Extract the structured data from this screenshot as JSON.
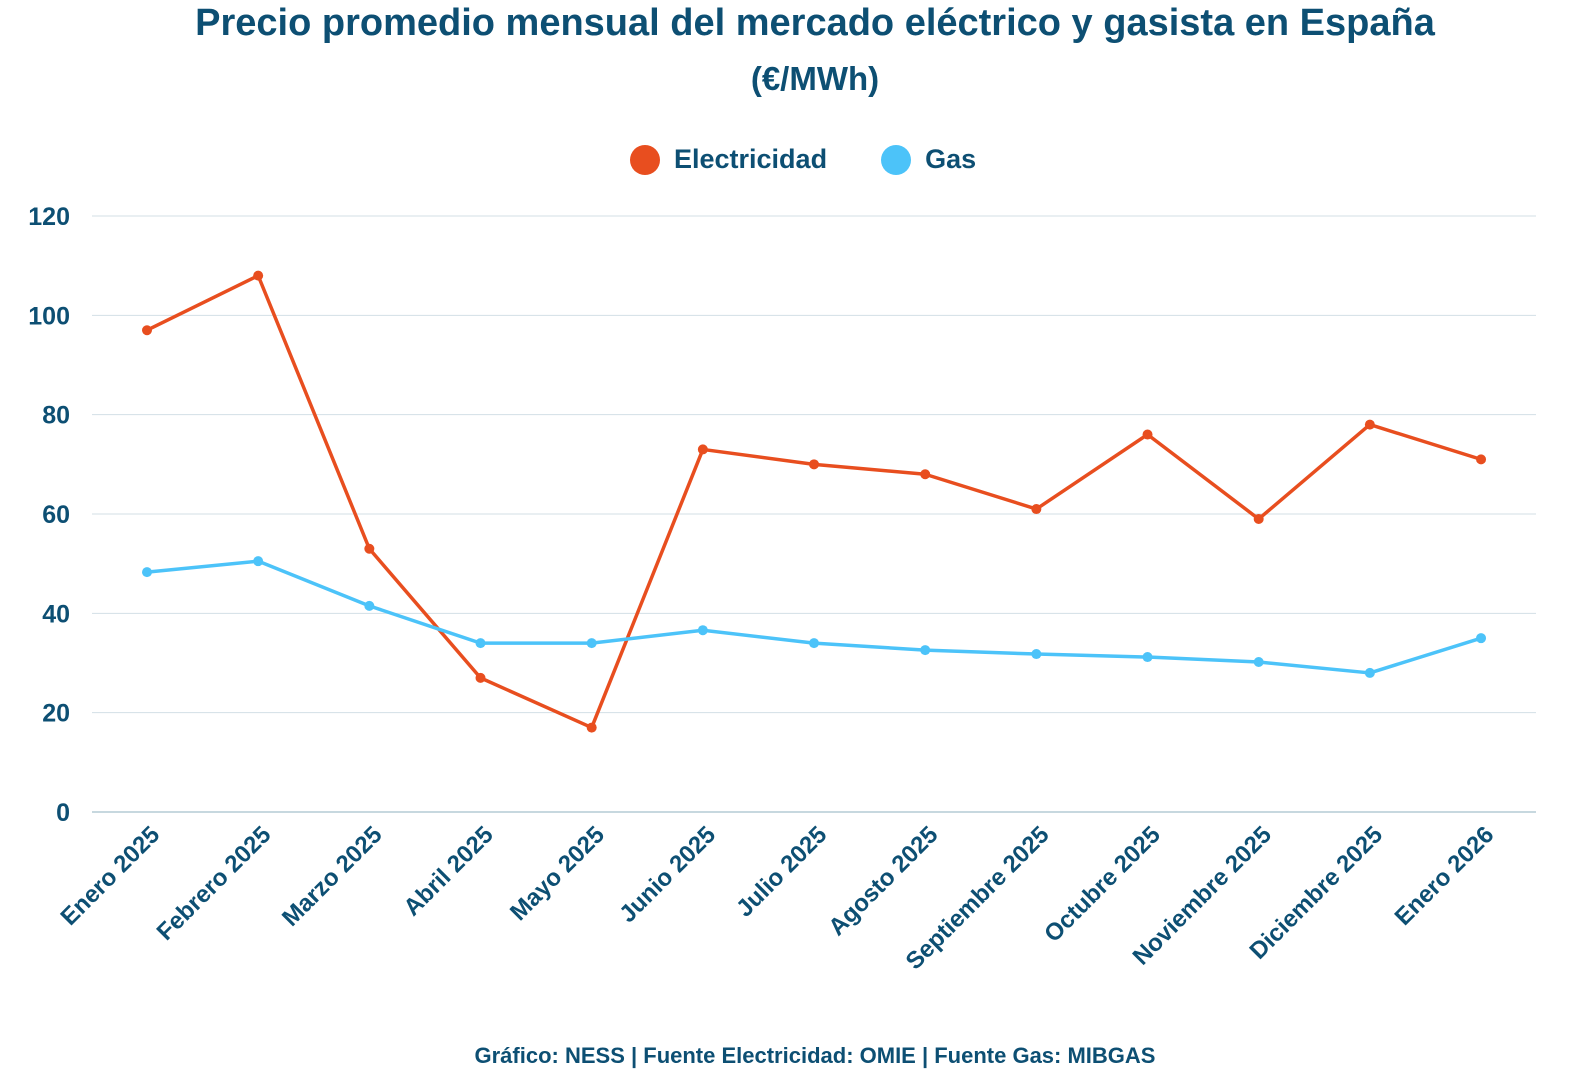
{
  "chart_data": {
    "type": "line",
    "title": "Precio promedio mensual del mercado eléctrico y gasista en España",
    "subtitle": "(€/MWh)",
    "categories": [
      "Enero 2025",
      "Febrero 2025",
      "Marzo 2025",
      "Abril 2025",
      "Mayo 2025",
      "Junio 2025",
      "Julio 2025",
      "Agosto 2025",
      "Septiembre 2025",
      "Octubre 2025",
      "Noviembre 2025",
      "Diciembre 2025",
      "Enero 2026"
    ],
    "series": [
      {
        "name": "Electricidad",
        "color": "#E84E1F",
        "values": [
          97,
          108,
          53,
          27,
          17,
          73,
          70,
          68,
          61,
          76,
          59,
          78,
          71
        ]
      },
      {
        "name": "Gas",
        "color": "#4CC3F9",
        "values": [
          48.3,
          50.5,
          41.5,
          34.0,
          34.0,
          36.6,
          34.0,
          32.6,
          31.8,
          31.2,
          30.2,
          28.0,
          35.0
        ]
      }
    ],
    "ylim": [
      0,
      120
    ],
    "yticks": [
      0,
      20,
      40,
      60,
      80,
      100,
      120
    ],
    "grid": true,
    "legend": "top-center",
    "source": "Gráfico: NESS | Fuente Electricidad: OMIE | Fuente Gas: MIBGAS"
  }
}
